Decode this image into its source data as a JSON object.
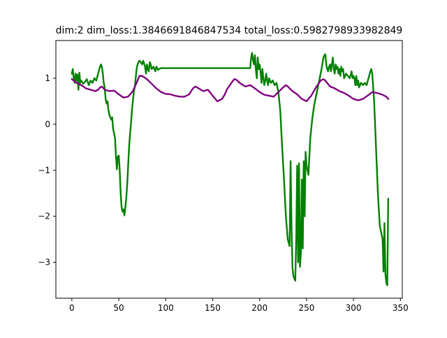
{
  "chart_data": {
    "type": "line",
    "title": "dim:2 dim_loss:1.3846691846847534 total_loss:0.5982798933982849",
    "xlabel": "",
    "ylabel": "",
    "xlim": [
      -17,
      352
    ],
    "ylim": [
      -3.78,
      1.82
    ],
    "xticks": [
      0,
      50,
      100,
      150,
      200,
      250,
      300,
      350
    ],
    "yticks": [
      -3,
      -2,
      -1,
      0,
      1
    ],
    "xtick_labels": [
      "0",
      "50",
      "100",
      "150",
      "200",
      "250",
      "300",
      "350"
    ],
    "ytick_labels": [
      "−3",
      "−2",
      "−1",
      "0",
      "1"
    ],
    "grid": false,
    "legend": "none",
    "series": [
      {
        "color": "#008000",
        "points": [
          [
            0,
            1.1
          ],
          [
            1,
            1.2
          ],
          [
            2,
            1.0
          ],
          [
            3,
            0.9
          ],
          [
            4,
            1.1
          ],
          [
            5,
            0.95
          ],
          [
            6,
            1.08
          ],
          [
            7,
            0.75
          ],
          [
            8,
            1.12
          ],
          [
            9,
            0.9
          ],
          [
            10,
            0.95
          ],
          [
            12,
            0.88
          ],
          [
            14,
            0.92
          ],
          [
            16,
            0.98
          ],
          [
            18,
            0.85
          ],
          [
            20,
            0.95
          ],
          [
            22,
            0.9
          ],
          [
            24,
            1.0
          ],
          [
            26,
            0.95
          ],
          [
            28,
            1.1
          ],
          [
            30,
            1.25
          ],
          [
            31,
            1.3
          ],
          [
            32,
            1.25
          ],
          [
            33,
            1.1
          ],
          [
            34,
            0.9
          ],
          [
            35,
            0.8
          ],
          [
            36,
            0.55
          ],
          [
            37,
            0.45
          ],
          [
            38,
            0.5
          ],
          [
            39,
            0.3
          ],
          [
            40,
            0.2
          ],
          [
            41,
            0.15
          ],
          [
            42,
            0.1
          ],
          [
            43,
            0.15
          ],
          [
            44,
            -0.1
          ],
          [
            45,
            -0.2
          ],
          [
            46,
            -0.3
          ],
          [
            47,
            -0.7
          ],
          [
            48,
            -0.98
          ],
          [
            49,
            -0.7
          ],
          [
            50,
            -0.68
          ],
          [
            51,
            -1.0
          ],
          [
            52,
            -1.5
          ],
          [
            53,
            -1.8
          ],
          [
            54,
            -1.9
          ],
          [
            55,
            -1.85
          ],
          [
            56,
            -1.98
          ],
          [
            57,
            -1.8
          ],
          [
            58,
            -1.6
          ],
          [
            59,
            -1.3
          ],
          [
            60,
            -0.9
          ],
          [
            61,
            -0.5
          ],
          [
            62,
            -0.2
          ],
          [
            63,
            0.0
          ],
          [
            64,
            0.3
          ],
          [
            65,
            0.5
          ],
          [
            66,
            0.7
          ],
          [
            67,
            0.8
          ],
          [
            68,
            1.0
          ],
          [
            69,
            1.2
          ],
          [
            70,
            1.3
          ],
          [
            71,
            1.35
          ],
          [
            72,
            1.38
          ],
          [
            73,
            1.36
          ],
          [
            74,
            1.33
          ],
          [
            75,
            1.3
          ],
          [
            76,
            1.38
          ],
          [
            77,
            1.32
          ],
          [
            78,
            1.25
          ],
          [
            79,
            1.1
          ],
          [
            80,
            1.3
          ],
          [
            81,
            1.2
          ],
          [
            82,
            1.15
          ],
          [
            83,
            1.35
          ],
          [
            84,
            1.3
          ],
          [
            85,
            1.2
          ],
          [
            86,
            1.22
          ],
          [
            87,
            1.25
          ],
          [
            88,
            1.2
          ],
          [
            89,
            1.15
          ],
          [
            90,
            1.25
          ],
          [
            91,
            1.22
          ],
          [
            92,
            1.18
          ],
          [
            93,
            1.2
          ],
          [
            95,
            1.22
          ],
          [
            100,
            1.22
          ],
          [
            120,
            1.22
          ],
          [
            140,
            1.22
          ],
          [
            160,
            1.22
          ],
          [
            180,
            1.22
          ],
          [
            190,
            1.22
          ],
          [
            191,
            1.45
          ],
          [
            192,
            1.55
          ],
          [
            193,
            1.4
          ],
          [
            194,
            1.3
          ],
          [
            195,
            1.5
          ],
          [
            196,
            1.2
          ],
          [
            197,
            1.0
          ],
          [
            198,
            1.45
          ],
          [
            199,
            1.2
          ],
          [
            200,
            1.3
          ],
          [
            201,
            1.15
          ],
          [
            202,
            0.9
          ],
          [
            203,
            1.2
          ],
          [
            204,
            1.0
          ],
          [
            205,
            0.85
          ],
          [
            206,
            0.95
          ],
          [
            207,
            1.1
          ],
          [
            208,
            0.95
          ],
          [
            209,
            0.85
          ],
          [
            210,
            1.0
          ],
          [
            212,
            0.9
          ],
          [
            214,
            0.95
          ],
          [
            216,
            0.85
          ],
          [
            218,
            0.9
          ],
          [
            220,
            0.7
          ],
          [
            222,
            0.3
          ],
          [
            224,
            -0.5
          ],
          [
            226,
            -1.2
          ],
          [
            228,
            -2.0
          ],
          [
            230,
            -2.5
          ],
          [
            232,
            -2.65
          ],
          [
            233,
            -0.8
          ],
          [
            234,
            -2.2
          ],
          [
            235,
            -3.1
          ],
          [
            236,
            -3.3
          ],
          [
            237,
            -3.35
          ],
          [
            238,
            -3.4
          ],
          [
            239,
            -2.5
          ],
          [
            240,
            -0.9
          ],
          [
            241,
            -3.0
          ],
          [
            242,
            -0.85
          ],
          [
            243,
            -3.1
          ],
          [
            244,
            -2.8
          ],
          [
            245,
            -1.2
          ],
          [
            246,
            -2.7
          ],
          [
            247,
            -0.8
          ],
          [
            248,
            -2.0
          ],
          [
            249,
            -0.6
          ],
          [
            250,
            -0.9
          ],
          [
            252,
            -1.1
          ],
          [
            254,
            -0.3
          ],
          [
            256,
            0.1
          ],
          [
            258,
            0.4
          ],
          [
            260,
            0.6
          ],
          [
            262,
            0.8
          ],
          [
            264,
            1.0
          ],
          [
            266,
            1.2
          ],
          [
            268,
            1.45
          ],
          [
            269,
            1.5
          ],
          [
            270,
            1.52
          ],
          [
            271,
            1.3
          ],
          [
            272,
            1.2
          ],
          [
            273,
            1.15
          ],
          [
            274,
            1.25
          ],
          [
            275,
            1.3
          ],
          [
            276,
            1.15
          ],
          [
            277,
            1.3
          ],
          [
            278,
            1.45
          ],
          [
            279,
            1.2
          ],
          [
            280,
            1.1
          ],
          [
            281,
            1.3
          ],
          [
            282,
            1.2
          ],
          [
            283,
            1.25
          ],
          [
            284,
            1.1
          ],
          [
            285,
            1.2
          ],
          [
            286,
            1.05
          ],
          [
            287,
            1.25
          ],
          [
            288,
            1.15
          ],
          [
            289,
            1.2
          ],
          [
            290,
            1.0
          ],
          [
            292,
            1.1
          ],
          [
            294,
            1.05
          ],
          [
            296,
            1.0
          ],
          [
            298,
            1.15
          ],
          [
            299,
            1.0
          ],
          [
            300,
            1.05
          ],
          [
            301,
            1.0
          ],
          [
            302,
            0.85
          ],
          [
            303,
            1.05
          ],
          [
            304,
            0.85
          ],
          [
            305,
            0.95
          ],
          [
            306,
            0.8
          ],
          [
            308,
            0.9
          ],
          [
            310,
            0.85
          ],
          [
            312,
            0.9
          ],
          [
            314,
            0.85
          ],
          [
            316,
            1.0
          ],
          [
            318,
            1.15
          ],
          [
            319,
            1.2
          ],
          [
            320,
            1.1
          ],
          [
            322,
            0.5
          ],
          [
            324,
            -0.5
          ],
          [
            326,
            -1.5
          ],
          [
            328,
            -2.2
          ],
          [
            330,
            -2.4
          ],
          [
            331,
            -2.5
          ],
          [
            332,
            -3.2
          ],
          [
            333,
            -2.15
          ],
          [
            334,
            -3.25
          ],
          [
            335,
            -3.45
          ],
          [
            336,
            -3.5
          ],
          [
            337,
            -1.62
          ]
        ]
      },
      {
        "color": "#800080",
        "points": [
          [
            0,
            0.98
          ],
          [
            5,
            0.9
          ],
          [
            10,
            0.85
          ],
          [
            15,
            0.78
          ],
          [
            20,
            0.75
          ],
          [
            25,
            0.72
          ],
          [
            28,
            0.75
          ],
          [
            30,
            0.8
          ],
          [
            32,
            0.82
          ],
          [
            35,
            0.75
          ],
          [
            40,
            0.72
          ],
          [
            45,
            0.73
          ],
          [
            50,
            0.65
          ],
          [
            55,
            0.58
          ],
          [
            60,
            0.6
          ],
          [
            65,
            0.72
          ],
          [
            70,
            0.95
          ],
          [
            72,
            1.05
          ],
          [
            75,
            1.05
          ],
          [
            80,
            0.98
          ],
          [
            85,
            0.88
          ],
          [
            90,
            0.78
          ],
          [
            95,
            0.7
          ],
          [
            100,
            0.66
          ],
          [
            105,
            0.65
          ],
          [
            110,
            0.62
          ],
          [
            115,
            0.6
          ],
          [
            120,
            0.6
          ],
          [
            125,
            0.65
          ],
          [
            128,
            0.75
          ],
          [
            130,
            0.8
          ],
          [
            132,
            0.82
          ],
          [
            135,
            0.78
          ],
          [
            140,
            0.72
          ],
          [
            145,
            0.75
          ],
          [
            150,
            0.62
          ],
          [
            155,
            0.5
          ],
          [
            160,
            0.55
          ],
          [
            163,
            0.65
          ],
          [
            165,
            0.75
          ],
          [
            170,
            0.9
          ],
          [
            173,
            0.98
          ],
          [
            175,
            0.97
          ],
          [
            180,
            0.88
          ],
          [
            185,
            0.82
          ],
          [
            190,
            0.85
          ],
          [
            195,
            0.78
          ],
          [
            200,
            0.7
          ],
          [
            205,
            0.64
          ],
          [
            210,
            0.62
          ],
          [
            215,
            0.6
          ],
          [
            220,
            0.7
          ],
          [
            225,
            0.8
          ],
          [
            228,
            0.85
          ],
          [
            230,
            0.82
          ],
          [
            235,
            0.72
          ],
          [
            240,
            0.65
          ],
          [
            245,
            0.55
          ],
          [
            250,
            0.5
          ],
          [
            255,
            0.62
          ],
          [
            260,
            0.8
          ],
          [
            265,
            0.95
          ],
          [
            268,
            0.98
          ],
          [
            270,
            0.95
          ],
          [
            275,
            0.82
          ],
          [
            280,
            0.78
          ],
          [
            285,
            0.72
          ],
          [
            290,
            0.68
          ],
          [
            295,
            0.62
          ],
          [
            300,
            0.55
          ],
          [
            305,
            0.52
          ],
          [
            310,
            0.55
          ],
          [
            315,
            0.62
          ],
          [
            320,
            0.7
          ],
          [
            325,
            0.68
          ],
          [
            330,
            0.65
          ],
          [
            335,
            0.6
          ],
          [
            337,
            0.55
          ]
        ]
      }
    ]
  }
}
